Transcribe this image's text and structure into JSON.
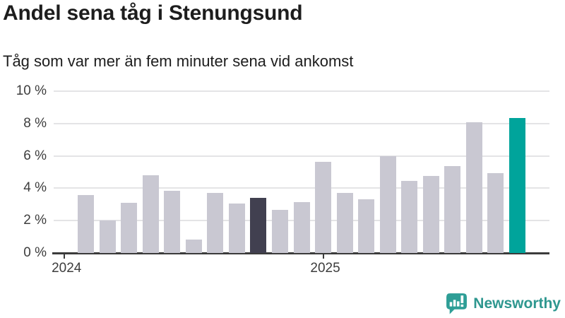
{
  "title": "Andel sena tåg i Stenungsund",
  "subtitle": "Tåg som var mer än fem minuter sena vid ankomst",
  "footer": {
    "brand": "Newsworthy",
    "brand_color": "#2e978f",
    "logo_icon": "bar-chart-speech-bubble-icon"
  },
  "chart_data": {
    "type": "bar",
    "title": "Andel sena tåg i Stenungsund",
    "subtitle": "Tåg som var mer än fem minuter sena vid ankomst",
    "unit": "%",
    "x": [
      "2024-02",
      "2024-03",
      "2024-04",
      "2024-05",
      "2024-06",
      "2024-07",
      "2024-08",
      "2024-09",
      "2024-10",
      "2024-11",
      "2024-12",
      "2025-01",
      "2025-02",
      "2025-03",
      "2025-04",
      "2025-05",
      "2025-06",
      "2025-07",
      "2025-08",
      "2025-09",
      "2025-10"
    ],
    "values": [
      3.6,
      2.0,
      3.1,
      4.8,
      3.85,
      0.85,
      3.7,
      3.05,
      3.4,
      2.65,
      3.15,
      5.65,
      3.7,
      3.3,
      6.0,
      4.45,
      4.75,
      5.35,
      8.1,
      4.95,
      8.35
    ],
    "ylim": [
      0,
      10
    ],
    "yticks": [
      {
        "value": 0,
        "label": "0 %"
      },
      {
        "value": 2,
        "label": "2 %"
      },
      {
        "value": 4,
        "label": "4 %"
      },
      {
        "value": 6,
        "label": "6 %"
      },
      {
        "value": 8,
        "label": "8 %"
      },
      {
        "value": 10,
        "label": "10 %"
      }
    ],
    "xticks": [
      {
        "label": "2024",
        "slot": 0
      },
      {
        "label": "2025",
        "slot": 12
      }
    ],
    "grid": true,
    "legend": "none",
    "colors": {
      "default": "#c9c8d2",
      "highlight_dark": "#414050",
      "highlight_current": "#00a49b"
    },
    "highlight_dark_index": 8,
    "highlight_current_index": 20
  }
}
